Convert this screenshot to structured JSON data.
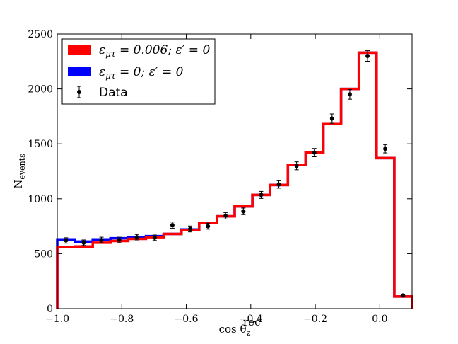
{
  "chart_data": {
    "type": "histogram-step",
    "xlabel": "cos θ",
    "xlabel_sub": "z",
    "xlabel_sup": "rec",
    "ylabel": "N",
    "ylabel_sub": "events",
    "xlim": [
      -1.0,
      0.1
    ],
    "ylim": [
      0,
      2500
    ],
    "xticks": [
      -1.0,
      -0.8,
      -0.6,
      -0.4,
      -0.2,
      0.0
    ],
    "xtick_labels": [
      "−1.0",
      "−0.8",
      "−0.6",
      "−0.4",
      "−0.2",
      "0.0"
    ],
    "yticks": [
      0,
      500,
      1000,
      1500,
      2000,
      2500
    ],
    "ytick_labels": [
      "0",
      "500",
      "1000",
      "1500",
      "2000",
      "2500"
    ],
    "bin_edges": [
      -1.0,
      -0.945,
      -0.89,
      -0.835,
      -0.78,
      -0.725,
      -0.67,
      -0.615,
      -0.56,
      -0.505,
      -0.45,
      -0.395,
      -0.34,
      -0.285,
      -0.23,
      -0.175,
      -0.12,
      -0.065,
      -0.01,
      0.045,
      0.1
    ],
    "series": [
      {
        "name": "εμτ = 0; ε′ = 0",
        "color": "#0000ff",
        "values": [
          630,
          610,
          630,
          640,
          650,
          660,
          680,
          720,
          780,
          840,
          930,
          1035,
          1125,
          1310,
          1420,
          1680,
          2000,
          2330,
          1370,
          110
        ]
      },
      {
        "name": "εμτ = 0.006; ε′ = 0",
        "color": "#ff0000",
        "values": [
          560,
          565,
          600,
          615,
          635,
          650,
          680,
          715,
          780,
          840,
          930,
          1035,
          1125,
          1310,
          1420,
          1680,
          2000,
          2330,
          1370,
          110
        ]
      }
    ],
    "data_points": {
      "name": "Data",
      "x": [
        -0.973,
        -0.918,
        -0.863,
        -0.808,
        -0.753,
        -0.698,
        -0.643,
        -0.588,
        -0.533,
        -0.478,
        -0.423,
        -0.368,
        -0.313,
        -0.258,
        -0.203,
        -0.148,
        -0.093,
        -0.038,
        0.017,
        0.072
      ],
      "y": [
        620,
        600,
        625,
        625,
        650,
        645,
        760,
        725,
        750,
        845,
        885,
        1035,
        1130,
        1300,
        1420,
        1730,
        1950,
        2300,
        1455,
        120
      ],
      "err": [
        25,
        25,
        25,
        25,
        25,
        25,
        28,
        27,
        27,
        29,
        30,
        32,
        34,
        36,
        38,
        42,
        44,
        48,
        38,
        11
      ]
    },
    "legend": {
      "placement": "top-left",
      "entries": [
        {
          "label_main": "ε",
          "label_sub": "μτ",
          "label_rest": " = 0.006; ε′ = 0",
          "color": "#ff0000",
          "kind": "patch"
        },
        {
          "label_main": "ε",
          "label_sub": "μτ",
          "label_rest": " = 0; ε′ = 0",
          "color": "#0000ff",
          "kind": "patch"
        },
        {
          "label_main": "Data",
          "label_sub": "",
          "label_rest": "",
          "color": "#000000",
          "kind": "errorbar"
        }
      ]
    },
    "grid": false
  }
}
